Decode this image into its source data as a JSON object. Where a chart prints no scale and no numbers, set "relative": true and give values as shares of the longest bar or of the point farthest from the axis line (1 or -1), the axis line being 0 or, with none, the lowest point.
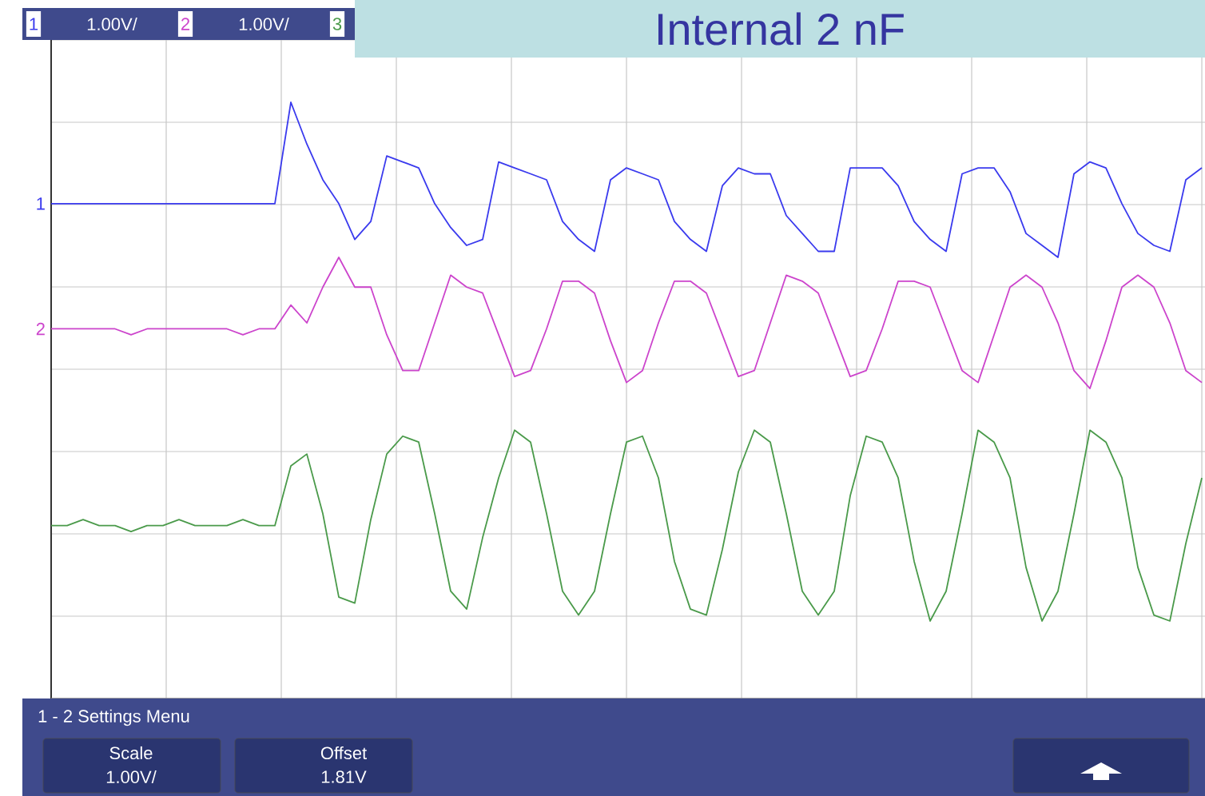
{
  "chart_data": {
    "type": "line",
    "title": "Internal 2 nF",
    "relative": true,
    "grid": true,
    "categories": [
      null,
      null,
      null,
      null,
      null,
      null,
      null,
      null,
      null,
      null,
      null,
      null,
      null,
      null,
      null,
      null,
      null,
      null,
      null,
      null,
      null,
      null,
      null,
      null,
      null,
      null,
      null,
      null,
      null,
      null,
      null,
      null,
      null,
      null,
      null,
      null,
      null,
      null,
      null,
      null,
      null,
      null,
      null,
      null,
      null,
      null,
      null,
      null,
      null,
      null,
      null,
      null,
      null,
      null,
      null,
      null,
      null,
      null,
      null,
      null,
      null,
      null,
      null,
      null,
      null,
      null,
      null,
      null,
      null,
      null,
      null,
      null,
      null
    ],
    "series": [
      {
        "name": "1",
        "color": "#3a3aee",
        "values": [
          0.83,
          0.83,
          0.83,
          0.83,
          0.83,
          0.83,
          0.83,
          0.83,
          0.83,
          0.83,
          0.83,
          0.83,
          0.83,
          0.83,
          0.83,
          1.0,
          0.93,
          0.87,
          0.83,
          0.77,
          0.8,
          0.91,
          0.9,
          0.89,
          0.83,
          0.79,
          0.76,
          0.77,
          0.9,
          0.89,
          0.88,
          0.87,
          0.8,
          0.77,
          0.75,
          0.87,
          0.89,
          0.88,
          0.87,
          0.8,
          0.77,
          0.75,
          0.86,
          0.89,
          0.88,
          0.88,
          0.81,
          0.78,
          0.75,
          0.75,
          0.89,
          0.89,
          0.89,
          0.86,
          0.8,
          0.77,
          0.75,
          0.88,
          0.89,
          0.89,
          0.85,
          0.78,
          0.76,
          0.74,
          0.88,
          0.9,
          0.89,
          0.83,
          0.78,
          0.76,
          0.75,
          0.87,
          0.89
        ]
      },
      {
        "name": "2",
        "color": "#cc44cc",
        "values": [
          0.62,
          0.62,
          0.62,
          0.62,
          0.62,
          0.61,
          0.62,
          0.62,
          0.62,
          0.62,
          0.62,
          0.62,
          0.61,
          0.62,
          0.62,
          0.66,
          0.63,
          0.69,
          0.74,
          0.69,
          0.69,
          0.61,
          0.55,
          0.55,
          0.63,
          0.71,
          0.69,
          0.68,
          0.61,
          0.54,
          0.55,
          0.62,
          0.7,
          0.7,
          0.68,
          0.6,
          0.53,
          0.55,
          0.63,
          0.7,
          0.7,
          0.68,
          0.61,
          0.54,
          0.55,
          0.63,
          0.71,
          0.7,
          0.68,
          0.61,
          0.54,
          0.55,
          0.62,
          0.7,
          0.7,
          0.69,
          0.62,
          0.55,
          0.53,
          0.61,
          0.69,
          0.71,
          0.69,
          0.63,
          0.55,
          0.52,
          0.6,
          0.69,
          0.71,
          0.69,
          0.63,
          0.55,
          0.53
        ]
      },
      {
        "color": "#4a9a4a",
        "values": [
          0.29,
          0.29,
          0.3,
          0.29,
          0.29,
          0.28,
          0.29,
          0.29,
          0.3,
          0.29,
          0.29,
          0.29,
          0.3,
          0.29,
          0.29,
          0.39,
          0.41,
          0.31,
          0.17,
          0.16,
          0.3,
          0.41,
          0.44,
          0.43,
          0.31,
          0.18,
          0.15,
          0.27,
          0.37,
          0.45,
          0.43,
          0.31,
          0.18,
          0.14,
          0.18,
          0.31,
          0.43,
          0.44,
          0.37,
          0.23,
          0.15,
          0.14,
          0.25,
          0.38,
          0.45,
          0.43,
          0.31,
          0.18,
          0.14,
          0.18,
          0.34,
          0.44,
          0.43,
          0.37,
          0.23,
          0.13,
          0.18,
          0.31,
          0.45,
          0.43,
          0.37,
          0.22,
          0.13,
          0.18,
          0.31,
          0.45,
          0.43,
          0.37,
          0.22,
          0.14,
          0.13,
          0.26,
          0.37
        ]
      }
    ],
    "annotations": [
      "1",
      "1.00V/",
      "2",
      "1.00V/",
      "3",
      "1 - 2 Settings Menu",
      "Scale",
      "1.00V/",
      "Offset",
      "1.81V"
    ]
  }
}
